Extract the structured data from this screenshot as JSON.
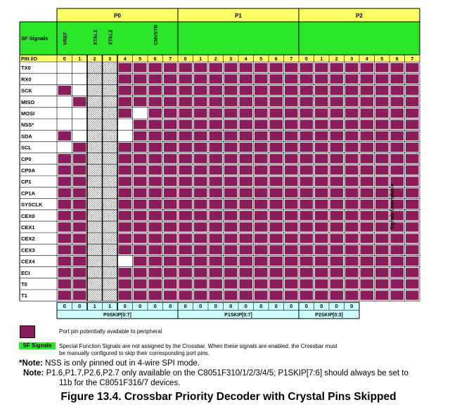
{
  "ports": [
    "P0",
    "P1",
    "P2"
  ],
  "pin_numbers": [
    "0",
    "1",
    "2",
    "3",
    "4",
    "5",
    "6",
    "7",
    "0",
    "1",
    "2",
    "3",
    "4",
    "5",
    "6",
    "7",
    "0",
    "1",
    "2",
    "3",
    "4",
    "5",
    "6",
    "7"
  ],
  "header": {
    "sf_signals": "SF Signals",
    "pin_io": "PIN I/O"
  },
  "sf_pin_labels": [
    {
      "label": "VREF",
      "col": 0
    },
    {
      "label": "XTAL1",
      "col": 2
    },
    {
      "label": "XTAL2",
      "col": 3
    },
    {
      "label": "CNVSTR",
      "col": 6
    }
  ],
  "skipped_pins": [
    2,
    3
  ],
  "signals_unavailable": "Signals Unavailable",
  "signals": [
    {
      "name": "TX0",
      "row": "ssxxxxxxxxxxxxxxxxxxxxxx"
    },
    {
      "name": "RX0",
      "row": "ss..xxxxxxxxxxxxxxxxxxxx"
    },
    {
      "name": "SCK",
      "row": "x...xxxxxxxxxxxxxxxxxxxx"
    },
    {
      "name": "MISO",
      "row": "ox..xxxxxxxxxxxxxxxxxxxx"
    },
    {
      "name": "MOSI",
      "row": "oo..xoxxxxxxxxxxxxxxxxxx"
    },
    {
      "name": "NSS*",
      "row": "oo..oxxxxxxxxxxxxxxxxxxx"
    },
    {
      "name": "SDA",
      "row": "xo..oxxxxxxxxxxxxxxxxxxx"
    },
    {
      "name": "SCL",
      "row": "ox..xxxxmmmxxxxxxxxxxxxx"
    },
    {
      "name": "CP0",
      "row": "xx..xxxxmmmmmxxxxxxxxxxx"
    },
    {
      "name": "CP0A",
      "row": "xx..xxxxmmmmmmmxxxxxxxxx"
    },
    {
      "name": "CP1",
      "row": "xx..xxxxmmmmmmmmxxxxxxxx"
    },
    {
      "name": "CP1A",
      "row": "xx..xxxxmmmmmmmmmxxxxxxx"
    },
    {
      "name": "SYSCLK",
      "row": "xx..xxxxmmmmmmmmmmxxxxxx"
    },
    {
      "name": "CEX0",
      "row": "xx..xxxxmmmmmmmmmmmxxxxx"
    },
    {
      "name": "CEX1",
      "row": "xx..xxxxmmmmmmmmmmmmxxxx"
    },
    {
      "name": "CEX2",
      "row": "xx..xxxxmmmmmmmmmmmmmxxx"
    },
    {
      "name": "CEX3",
      "row": "xx..xmmmmmmmmmmmmmmmmmxx"
    },
    {
      "name": "CEX4",
      "row": "xx..oxmmmmmmmmmmmmmmmmmx"
    },
    {
      "name": "ECI",
      "row": "mm..mmmmmmmmmmmmmmmmmmmm"
    },
    {
      "name": "T0",
      "row": "mm..mmmmmmmmmmmmmmmmmmmm"
    },
    {
      "name": "T1",
      "row": "mm..mmmmmmmmmmmmmmmmmmmm"
    }
  ],
  "skip_values": [
    "0",
    "0",
    "1",
    "1",
    "0",
    "0",
    "0",
    "0",
    "0",
    "0",
    "0",
    "0",
    "0",
    "0",
    "0",
    "0",
    "0",
    "0",
    "0",
    "0"
  ],
  "skip_labels": [
    "P0SKIP[0:7]",
    "P1SKIP[0:7]",
    "P2SKIP[0:3]"
  ],
  "legend": {
    "available": "Port pin potentially available to peripheral",
    "sf_tag": "SF Signals",
    "sf_line1": "Special Function Signals are not assigned by the Crossbar. When these signals are enabled, the Crossbar must",
    "sf_line2": "be manually configured to skip their corresponding port pins."
  },
  "notes": {
    "note1_label": "*Note:",
    "note1_text": "NSS is only pinned out in 4-wire SPI mode.",
    "note2_label": "Note:",
    "note2_text1": "P1.6,P1.7,P2.6,P2.7 only available on the C8051F310/1/2/3/4/5; P1SKIP[7:6] should always be set to",
    "note2_text2": "11b for the C8051F316/7 devices."
  },
  "caption": "Figure 13.4. Crossbar Priority Decoder with Crystal Pins Skipped",
  "colors": {
    "assigned": "#8b1d5b",
    "sf_green": "#2ce62c",
    "header_yellow": "#ffff66",
    "skip_cyan": "#ccffff"
  }
}
